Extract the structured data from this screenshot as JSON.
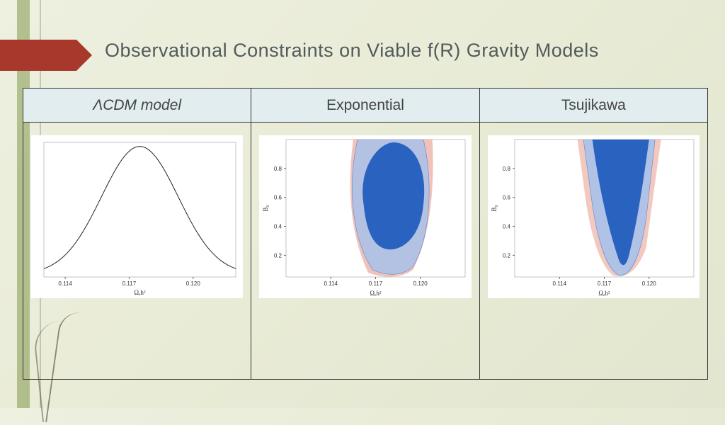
{
  "title": "Observational Constraints on Viable f(R) Gravity Models",
  "columns": [
    {
      "label": "ΛCDM model"
    },
    {
      "label": "Exponential"
    },
    {
      "label": "Tsujikawa"
    }
  ],
  "plot1": {
    "type": "line",
    "xlabel": "Ωₑh²",
    "xticks": [
      0.114,
      0.117,
      0.12
    ],
    "xlim": [
      0.113,
      0.122
    ],
    "ylim": [
      0,
      1
    ],
    "line_color": "#222222",
    "line_width": 1,
    "gaussian_center": 0.1175,
    "gaussian_width": 0.0018,
    "background_color": "#ffffff"
  },
  "plot2": {
    "type": "contour",
    "xlabel": "Ωₑh²",
    "ylabel": "B₀",
    "xticks": [
      0.114,
      0.117,
      0.12
    ],
    "yticks": [
      0.2,
      0.4,
      0.6,
      0.8
    ],
    "xlim": [
      0.111,
      0.123
    ],
    "ylim": [
      0.05,
      1.0
    ],
    "outer_color": "#e89a8a",
    "mid_color": "#a8c2ea",
    "inner_color": "#2a62c0",
    "outline_color": "#6185c8",
    "background_color": "#ffffff"
  },
  "plot3": {
    "type": "contour",
    "xlabel": "Ωₑh²",
    "ylabel": "B₀",
    "xticks": [
      0.114,
      0.117,
      0.12
    ],
    "yticks": [
      0.2,
      0.4,
      0.6,
      0.8
    ],
    "xlim": [
      0.111,
      0.123
    ],
    "ylim": [
      0.05,
      1.0
    ],
    "outer_color": "#e89a8a",
    "mid_color": "#a8c2ea",
    "inner_color": "#2a62c0",
    "outline_color": "#6185c8",
    "background_color": "#ffffff"
  },
  "colors": {
    "banner": "#a7382b",
    "header_bg": "#e1edee",
    "border": "#333333"
  }
}
